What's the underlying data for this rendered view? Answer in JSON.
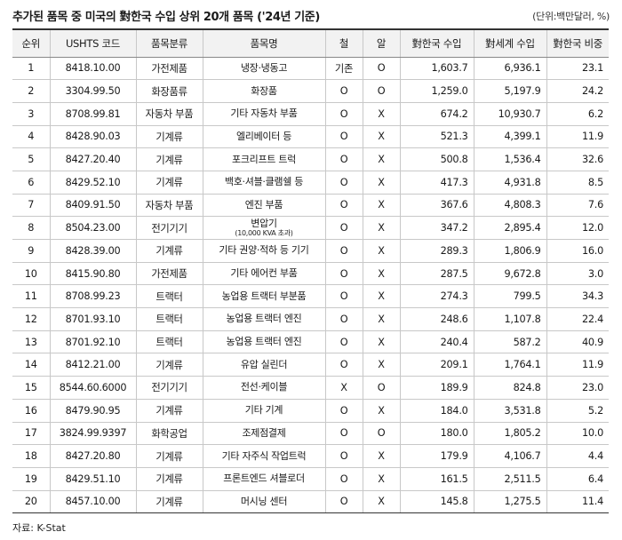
{
  "title": "추가된 품목 중 미국의 對한국 수입 상위 20개 품목 ('24년 기준)",
  "unit": "(단위:백만달러, %)",
  "columns": [
    "순위",
    "USHTS 코드",
    "품목분류",
    "품목명",
    "철",
    "알",
    "對한국 수입",
    "對세계 수입",
    "對한국 비중"
  ],
  "rows": [
    {
      "rank": "1",
      "code": "8418.10.00",
      "category": "가전제품",
      "name": "냉장·냉동고",
      "name_sub": "",
      "steel": "기존",
      "alu": "O",
      "korea": "1,603.7",
      "world": "6,936.1",
      "share": "23.1"
    },
    {
      "rank": "2",
      "code": "3304.99.50",
      "category": "화장품류",
      "name": "화장품",
      "name_sub": "",
      "steel": "O",
      "alu": "O",
      "korea": "1,259.0",
      "world": "5,197.9",
      "share": "24.2"
    },
    {
      "rank": "3",
      "code": "8708.99.81",
      "category": "자동차 부품",
      "name": "기타 자동차 부품",
      "name_sub": "",
      "steel": "O",
      "alu": "X",
      "korea": "674.2",
      "world": "10,930.7",
      "share": "6.2"
    },
    {
      "rank": "4",
      "code": "8428.90.03",
      "category": "기계류",
      "name": "엘리베이터 등",
      "name_sub": "",
      "steel": "O",
      "alu": "X",
      "korea": "521.3",
      "world": "4,399.1",
      "share": "11.9"
    },
    {
      "rank": "5",
      "code": "8427.20.40",
      "category": "기계류",
      "name": "포크리프트 트럭",
      "name_sub": "",
      "steel": "O",
      "alu": "X",
      "korea": "500.8",
      "world": "1,536.4",
      "share": "32.6"
    },
    {
      "rank": "6",
      "code": "8429.52.10",
      "category": "기계류",
      "name": "백호·셔블·클램쉘 등",
      "name_sub": "",
      "steel": "O",
      "alu": "X",
      "korea": "417.3",
      "world": "4,931.8",
      "share": "8.5"
    },
    {
      "rank": "7",
      "code": "8409.91.50",
      "category": "자동차 부품",
      "name": "엔진 부품",
      "name_sub": "",
      "steel": "O",
      "alu": "X",
      "korea": "367.6",
      "world": "4,808.3",
      "share": "7.6"
    },
    {
      "rank": "8",
      "code": "8504.23.00",
      "category": "전기기기",
      "name": "변압기",
      "name_sub": "(10,000 KVA 초과)",
      "steel": "O",
      "alu": "X",
      "korea": "347.2",
      "world": "2,895.4",
      "share": "12.0"
    },
    {
      "rank": "9",
      "code": "8428.39.00",
      "category": "기계류",
      "name": "기타 권양·적하 등 기기",
      "name_sub": "",
      "steel": "O",
      "alu": "X",
      "korea": "289.3",
      "world": "1,806.9",
      "share": "16.0"
    },
    {
      "rank": "10",
      "code": "8415.90.80",
      "category": "가전제품",
      "name": "기타 에어컨 부품",
      "name_sub": "",
      "steel": "O",
      "alu": "X",
      "korea": "287.5",
      "world": "9,672.8",
      "share": "3.0"
    },
    {
      "rank": "11",
      "code": "8708.99.23",
      "category": "트랙터",
      "name": "농업용 트랙터 부분품",
      "name_sub": "",
      "steel": "O",
      "alu": "X",
      "korea": "274.3",
      "world": "799.5",
      "share": "34.3"
    },
    {
      "rank": "12",
      "code": "8701.93.10",
      "category": "트랙터",
      "name": "농업용 트랙터 엔진",
      "name_sub": "",
      "steel": "O",
      "alu": "X",
      "korea": "248.6",
      "world": "1,107.8",
      "share": "22.4"
    },
    {
      "rank": "13",
      "code": "8701.92.10",
      "category": "트랙터",
      "name": "농업용 트랙터 엔진",
      "name_sub": "",
      "steel": "O",
      "alu": "X",
      "korea": "240.4",
      "world": "587.2",
      "share": "40.9"
    },
    {
      "rank": "14",
      "code": "8412.21.00",
      "category": "기계류",
      "name": "유압 실린더",
      "name_sub": "",
      "steel": "O",
      "alu": "X",
      "korea": "209.1",
      "world": "1,764.1",
      "share": "11.9"
    },
    {
      "rank": "15",
      "code": "8544.60.6000",
      "category": "전기기기",
      "name": "전선·케이블",
      "name_sub": "",
      "steel": "X",
      "alu": "O",
      "korea": "189.9",
      "world": "824.8",
      "share": "23.0"
    },
    {
      "rank": "16",
      "code": "8479.90.95",
      "category": "기계류",
      "name": "기타 기계",
      "name_sub": "",
      "steel": "O",
      "alu": "X",
      "korea": "184.0",
      "world": "3,531.8",
      "share": "5.2"
    },
    {
      "rank": "17",
      "code": "3824.99.9397",
      "category": "화학공업",
      "name": "조제점결제",
      "name_sub": "",
      "steel": "O",
      "alu": "O",
      "korea": "180.0",
      "world": "1,805.2",
      "share": "10.0"
    },
    {
      "rank": "18",
      "code": "8427.20.80",
      "category": "기계류",
      "name": "기타 자주식 작업트럭",
      "name_sub": "",
      "steel": "O",
      "alu": "X",
      "korea": "179.9",
      "world": "4,106.7",
      "share": "4.4"
    },
    {
      "rank": "19",
      "code": "8429.51.10",
      "category": "기계류",
      "name": "프론트엔드 셔블로더",
      "name_sub": "",
      "steel": "O",
      "alu": "X",
      "korea": "161.5",
      "world": "2,511.5",
      "share": "6.4"
    },
    {
      "rank": "20",
      "code": "8457.10.00",
      "category": "기계류",
      "name": "머시닝 센터",
      "name_sub": "",
      "steel": "O",
      "alu": "X",
      "korea": "145.8",
      "world": "1,275.5",
      "share": "11.4"
    }
  ],
  "source": "자료: K-Stat"
}
